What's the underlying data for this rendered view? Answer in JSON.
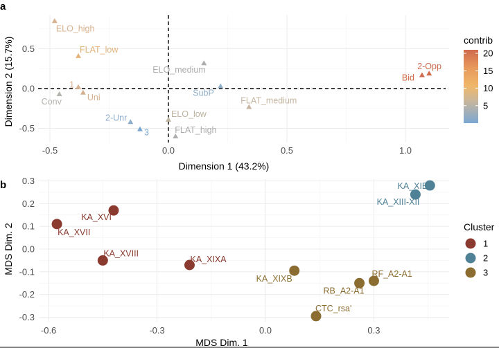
{
  "chart_data": [
    {
      "panel": "a",
      "type": "scatter",
      "title": "",
      "xlabel": "Dimension 1 (43.2%)",
      "ylabel": "Dimension 2 (15.7%)",
      "xlim": [
        -0.55,
        1.2
      ],
      "ylim": [
        -0.67,
        0.92
      ],
      "xticks": [
        -0.5,
        0.0,
        0.5,
        1.0
      ],
      "xtick_labels": [
        "-0.5",
        "0.0",
        "0.5",
        "1.0"
      ],
      "yticks": [
        -0.5,
        0.0,
        0.5
      ],
      "ytick_labels": [
        "-0.5",
        "0.0",
        "0.5"
      ],
      "grid": true,
      "reference_lines": {
        "x": 0,
        "y": 0,
        "style": "dashed"
      },
      "marker": "triangle",
      "color_scale": {
        "name": "contrib",
        "range": [
          0,
          21
        ],
        "ticks": [
          5,
          10,
          15,
          20
        ],
        "tick_labels": [
          "5",
          "10",
          "15",
          "20"
        ],
        "colors": [
          "#7ba7d3",
          "#c7b69c",
          "#efb86a",
          "#e89a5c",
          "#cf6a4c"
        ],
        "legend_position": "right"
      },
      "points": [
        {
          "label": "ELO_high",
          "x": -0.48,
          "y": 0.85,
          "contrib": 8,
          "color": "#d8b28e"
        },
        {
          "label": "FLAT_low",
          "x": -0.38,
          "y": 0.41,
          "contrib": 10,
          "color": "#e2b37a"
        },
        {
          "label": "1",
          "x": -0.38,
          "y": 0.02,
          "contrib": 7,
          "color": "#d8b290"
        },
        {
          "label": "Uni",
          "x": -0.36,
          "y": -0.05,
          "contrib": 7,
          "color": "#d4b08f"
        },
        {
          "label": "Conv",
          "x": -0.46,
          "y": -0.07,
          "contrib": 3,
          "color": "#b5b3ae"
        },
        {
          "label": "ELO_medium",
          "x": 0.15,
          "y": 0.32,
          "contrib": 3,
          "color": "#adadad"
        },
        {
          "label": "SubP",
          "x": 0.22,
          "y": 0.03,
          "contrib": 2,
          "color": "#8fafc8"
        },
        {
          "label": "FLAT_medium",
          "x": 0.34,
          "y": -0.23,
          "contrib": 4,
          "color": "#c5b6a2"
        },
        {
          "label": "2-Opp",
          "x": 1.1,
          "y": 0.19,
          "contrib": 20,
          "color": "#cf6a4c"
        },
        {
          "label": "Bid",
          "x": 1.07,
          "y": 0.17,
          "contrib": 20,
          "color": "#cf6a4c"
        },
        {
          "label": "2-Unr",
          "x": -0.16,
          "y": -0.42,
          "contrib": 2,
          "color": "#8eadcc"
        },
        {
          "label": "3",
          "x": -0.12,
          "y": -0.51,
          "contrib": 1,
          "color": "#7ba7d3"
        },
        {
          "label": "ELO_low",
          "x": 0.0,
          "y": -0.39,
          "contrib": 4,
          "color": "#bdb39e"
        },
        {
          "label": "FLAT_high",
          "x": 0.03,
          "y": -0.6,
          "contrib": 3,
          "color": "#adadad"
        }
      ]
    },
    {
      "panel": "b",
      "type": "scatter",
      "title": "",
      "xlabel": "MDS Dim. 1",
      "ylabel": "MDS Dim. 2",
      "xlim": [
        -0.625,
        0.51
      ],
      "ylim": [
        -0.31,
        0.31
      ],
      "xticks": [
        -0.6,
        -0.3,
        0.0,
        0.3
      ],
      "xtick_labels": [
        "-0.6",
        "-0.3",
        "0.0",
        "0.3"
      ],
      "yticks": [
        -0.3,
        -0.2,
        -0.1,
        0.0,
        0.1,
        0.2,
        0.3
      ],
      "ytick_labels": [
        "-0.3",
        "-0.2",
        "-0.1",
        "0.0",
        "0.1",
        "0.2",
        "0.3"
      ],
      "grid": true,
      "marker": "circle",
      "legend": {
        "title": "Cluster",
        "position": "right",
        "entries": [
          {
            "label": "1",
            "color": "#8b3a2f"
          },
          {
            "label": "2",
            "color": "#4f8296"
          },
          {
            "label": "3",
            "color": "#8c6d31"
          }
        ]
      },
      "points": [
        {
          "label": "KA_XVII",
          "x": -0.577,
          "y": 0.11,
          "cluster": "1"
        },
        {
          "label": "KA_XVI",
          "x": -0.42,
          "y": 0.17,
          "cluster": "1"
        },
        {
          "label": "KA_XVIII",
          "x": -0.45,
          "y": -0.05,
          "cluster": "1"
        },
        {
          "label": "KA_XIXA",
          "x": -0.21,
          "y": -0.07,
          "cluster": "1"
        },
        {
          "label": "KA_XIB",
          "x": 0.455,
          "y": 0.28,
          "cluster": "2"
        },
        {
          "label": "KA_XIII-XII",
          "x": 0.415,
          "y": 0.24,
          "cluster": "2"
        },
        {
          "label": "KA_XIXB",
          "x": 0.08,
          "y": -0.095,
          "cluster": "3"
        },
        {
          "label": "RB_A2-A1",
          "x": 0.26,
          "y": -0.15,
          "cluster": "3"
        },
        {
          "label": "RF_A2-A1",
          "x": 0.3,
          "y": -0.14,
          "cluster": "3"
        },
        {
          "label": "CTC_rsa'",
          "x": 0.14,
          "y": -0.295,
          "cluster": "3"
        }
      ]
    }
  ],
  "panel_tags": {
    "a": "a",
    "b": "b"
  }
}
